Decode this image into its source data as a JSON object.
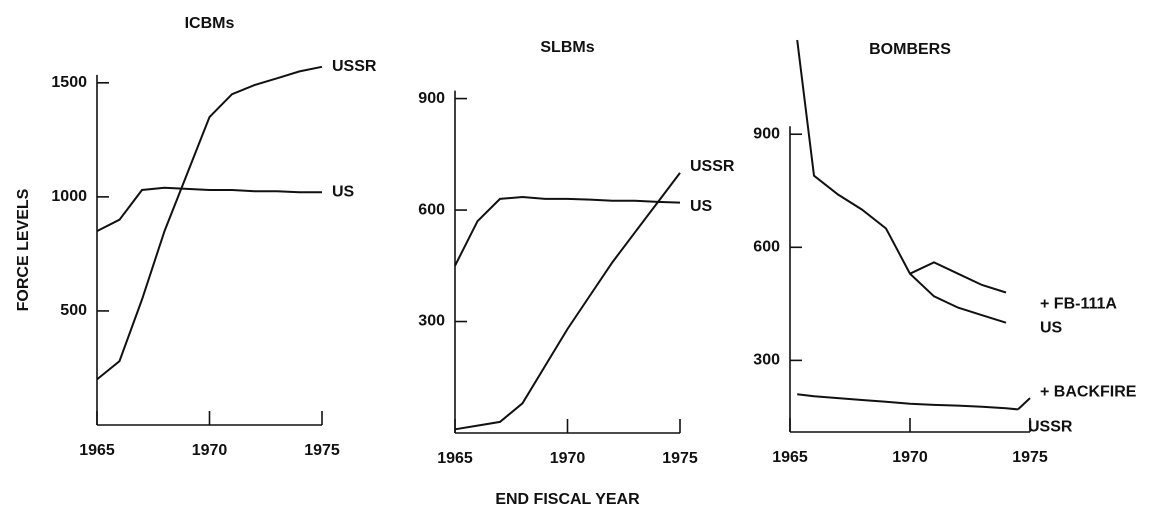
{
  "chart_data": [
    {
      "type": "line",
      "title": "ICBMs",
      "ylabel": "FORCE LEVELS",
      "x": [
        1965,
        1966,
        1967,
        1968,
        1969,
        1970,
        1971,
        1972,
        1973,
        1974,
        1975
      ],
      "series": [
        {
          "name": "USSR",
          "color": "#111111",
          "values": [
            200,
            280,
            550,
            850,
            1100,
            1350,
            1450,
            1490,
            1520,
            1550,
            1570
          ]
        },
        {
          "name": "US",
          "color": "#111111",
          "values": [
            850,
            900,
            1030,
            1040,
            1035,
            1030,
            1030,
            1025,
            1025,
            1020,
            1020
          ]
        }
      ],
      "xlim": [
        1965,
        1975
      ],
      "xticks": [
        1965,
        1970,
        1975
      ],
      "ylim": [
        0,
        1600
      ],
      "yticks": [
        500,
        1000,
        1500
      ]
    },
    {
      "type": "line",
      "title": "SLBMs",
      "xlabel": "END FISCAL YEAR",
      "x": [
        1965,
        1966,
        1967,
        1968,
        1969,
        1970,
        1971,
        1972,
        1973,
        1974,
        1975
      ],
      "series": [
        {
          "name": "USSR",
          "color": "#111111",
          "values": [
            10,
            20,
            30,
            80,
            180,
            280,
            370,
            460,
            540,
            620,
            700
          ]
        },
        {
          "name": "US",
          "color": "#111111",
          "values": [
            450,
            570,
            630,
            635,
            630,
            630,
            628,
            625,
            625,
            622,
            620
          ]
        }
      ],
      "xlim": [
        1965,
        1975
      ],
      "xticks": [
        1965,
        1970,
        1975
      ],
      "ylim": [
        0,
        950
      ],
      "yticks": [
        300,
        600,
        900
      ]
    },
    {
      "type": "line",
      "title": "BOMBERS",
      "x": [
        1965.3,
        1966,
        1967,
        1968,
        1969,
        1970,
        1971,
        1972,
        1973,
        1974,
        1974.5,
        1975
      ],
      "series": [
        {
          "name": "+ FB-111A",
          "color": "#111111",
          "values": [
            null,
            null,
            null,
            null,
            null,
            530,
            560,
            530,
            500,
            480,
            null,
            460
          ]
        },
        {
          "name": "US",
          "color": "#111111",
          "values": [
            1150,
            790,
            740,
            700,
            650,
            530,
            470,
            440,
            420,
            400,
            null,
            385
          ]
        },
        {
          "name": "+ BACKFIRE",
          "color": "#111111",
          "values": [
            null,
            null,
            null,
            null,
            null,
            null,
            null,
            null,
            null,
            null,
            170,
            200
          ]
        },
        {
          "name": "USSR",
          "color": "#111111",
          "values": [
            210,
            205,
            200,
            195,
            190,
            185,
            182,
            180,
            177,
            173,
            170,
            null
          ]
        }
      ],
      "xlim": [
        1965,
        1975
      ],
      "xticks": [
        1965,
        1970,
        1975
      ],
      "ylim": [
        110,
        1150
      ],
      "yticks": [
        300,
        600,
        900
      ]
    }
  ]
}
